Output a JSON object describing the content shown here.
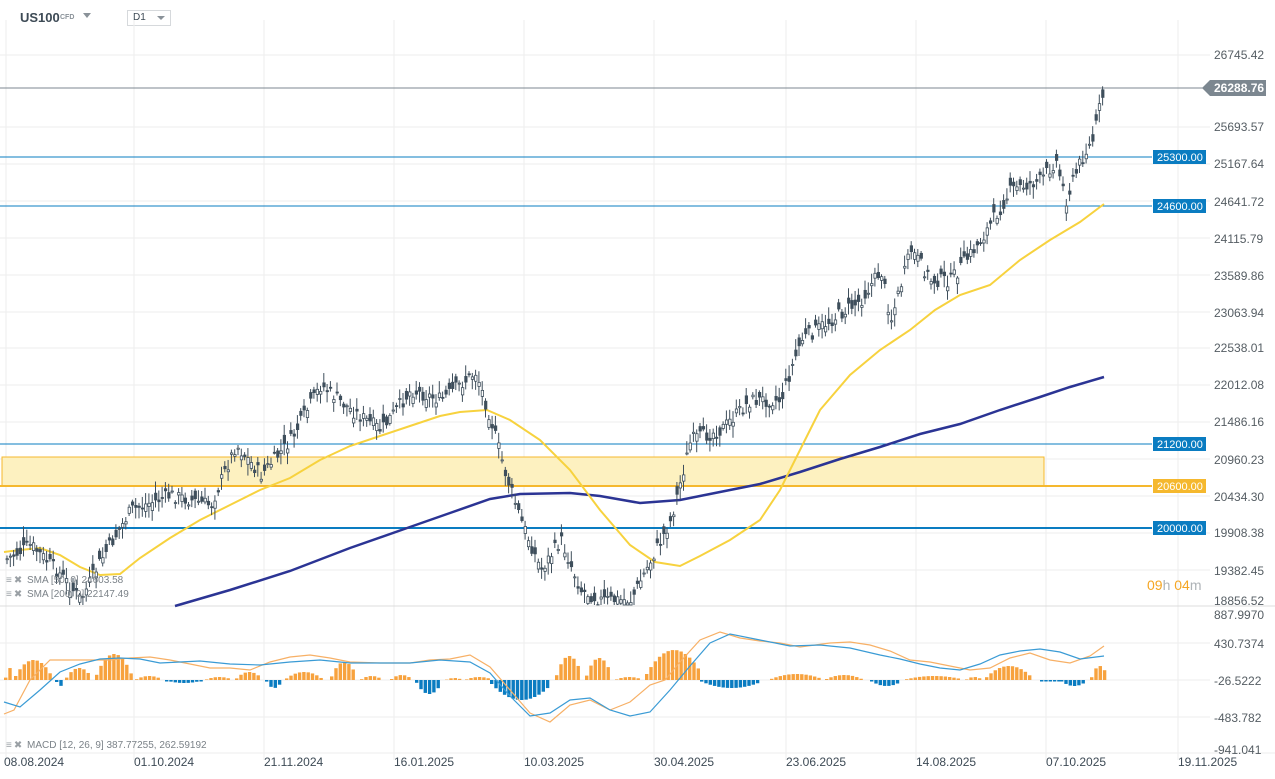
{
  "header": {
    "symbol": "US100",
    "symbol_type": "CFD",
    "timeframe": "D1"
  },
  "price_axis": {
    "ticks": [
      "26745.42",
      "25693.57",
      "25167.64",
      "24641.72",
      "24115.79",
      "23589.86",
      "23063.94",
      "22538.01",
      "22012.08",
      "21486.16",
      "20960.23",
      "20434.30",
      "19908.38",
      "19382.45",
      "18856.52"
    ],
    "current_price": "26288.76"
  },
  "macd_axis": {
    "ticks": [
      "887.9970",
      "430.7374",
      "-26.5222",
      "-483.782",
      "-941.041"
    ]
  },
  "date_axis": {
    "ticks": [
      "08.08.2024",
      "01.10.2024",
      "21.11.2024",
      "16.01.2025",
      "10.03.2025",
      "30.04.2025",
      "23.06.2025",
      "14.08.2025",
      "07.10.2025",
      "19.11.2025"
    ]
  },
  "levels": [
    {
      "label": "25300.00",
      "color": "#0a7cc1"
    },
    {
      "label": "24600.00",
      "color": "#0a7cc1"
    },
    {
      "label": "21200.00",
      "color": "#0a7cc1"
    },
    {
      "label": "20600.00",
      "color": "#f5b82e"
    },
    {
      "label": "20000.00",
      "color": "#0a7cc1"
    }
  ],
  "legends": {
    "sma50": "SMA [50, 0] 24603.58",
    "sma200": "SMA [200, 0] 22147.49",
    "macd": "MACD [12, 26, 9] 387.77255,  262.59192"
  },
  "timer": {
    "hours": "09",
    "h": "h",
    "minutes": "04",
    "m": "m"
  },
  "colors": {
    "candle": "#3f4f5c",
    "sma50": "#f7d23e",
    "sma200": "#2b3494",
    "level_blue": "#0a7cc1",
    "level_gold": "#f5b82e",
    "zone_fill": "#fdf1c0",
    "macd_pos": "#f7a23e",
    "macd_neg": "#0a7cc1",
    "macd_line": "#3a9bd5",
    "signal_line": "#f7b066"
  },
  "chart_data": [
    {
      "type": "candlestick",
      "title": "US100 CFD D1",
      "x_range": [
        "08.08.2024",
        "19.11.2025"
      ],
      "ylim": [
        18856.52,
        27000
      ],
      "y_ticks": [
        26745.42,
        25693.57,
        25167.64,
        24641.72,
        24115.79,
        23589.86,
        23063.94,
        22538.01,
        22012.08,
        21486.16,
        20960.23,
        20434.3,
        19908.38,
        19382.45,
        18856.52
      ],
      "last_price": 26288.76,
      "approx_closes": [
        {
          "date": "08.08.2024",
          "close": 18900
        },
        {
          "date": "01.10.2024",
          "close": 19900
        },
        {
          "date": "21.11.2024",
          "close": 20800
        },
        {
          "date": "16.12.2024",
          "close": 22100
        },
        {
          "date": "16.01.2025",
          "close": 21300
        },
        {
          "date": "18.02.2025",
          "close": 22200
        },
        {
          "date": "10.03.2025",
          "close": 19500
        },
        {
          "date": "07.04.2025",
          "close": 18900
        },
        {
          "date": "30.04.2025",
          "close": 19900
        },
        {
          "date": "23.06.2025",
          "close": 22000
        },
        {
          "date": "14.08.2025",
          "close": 23700
        },
        {
          "date": "07.10.2025",
          "close": 25000
        },
        {
          "date": "29.10.2025",
          "close": 26288.76
        }
      ],
      "series": [
        {
          "name": "SMA [50, 0]",
          "last": 24603.58
        },
        {
          "name": "SMA [200, 0]",
          "last": 22147.49
        }
      ],
      "horizontal_levels": [
        25300.0,
        24600.0,
        21200.0,
        20600.0,
        20000.0
      ],
      "zones": [
        {
          "from": 20600.0,
          "to": 21100,
          "x_start": "08.08.2024",
          "x_end": "07.10.2025"
        }
      ]
    },
    {
      "type": "bar+line",
      "title": "MACD [12, 26, 9]",
      "ylim": [
        -941.041,
        887.997
      ],
      "y_ticks": [
        887.997,
        430.7374,
        -26.5222,
        -483.782,
        -941.041
      ],
      "series": [
        {
          "name": "MACD",
          "last": 387.77255
        },
        {
          "name": "Signal",
          "last": 262.59192
        },
        {
          "name": "Histogram",
          "last": 125.18
        }
      ]
    }
  ]
}
